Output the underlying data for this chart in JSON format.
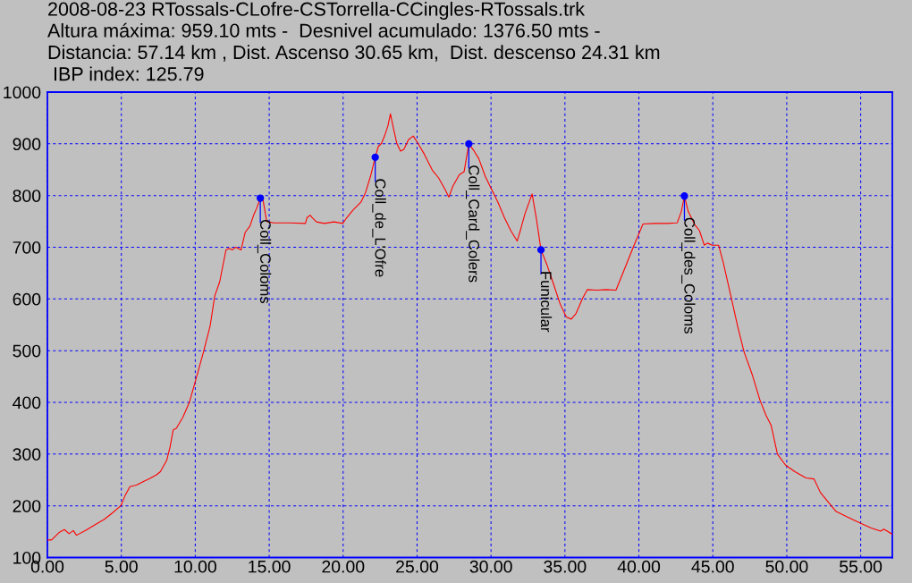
{
  "chart_data": {
    "type": "line",
    "title": "2008-08-23 RTossals-CLofre-CSTorrella-CCingles-RTossals.trk",
    "subtitle": "Altura máxima: 959.10 mts -  Desnivel acumulado: 1376.50 mts -\nDistancia: 57.14 km , Dist. Ascenso 30.65 km,  Dist. descenso 24.31 km\n IBP index: 125.79",
    "x": [
      0,
      0.28,
      0.82,
      1.15,
      1.47,
      1.75,
      1.97,
      2.55,
      3.31,
      3.85,
      4.39,
      4.96,
      5.26,
      5.58,
      6.02,
      6.56,
      6.88,
      7.38,
      7.64,
      8.07,
      8.29,
      8.51,
      8.72,
      9.16,
      9.59,
      10.02,
      10.56,
      11.0,
      11.32,
      11.65,
      12.08,
      12.29,
      12.51,
      12.73,
      13.1,
      13.38,
      13.7,
      13.96,
      14.15,
      14.4,
      14.55,
      14.83,
      15.3,
      16.37,
      17.45,
      17.55,
      17.77,
      17.92,
      18.2,
      18.73,
      19.38,
      19.98,
      20.24,
      20.67,
      21.2,
      21.52,
      21.85,
      22.17,
      22.38,
      22.6,
      22.81,
      23.03,
      23.2,
      23.41,
      23.63,
      23.88,
      24.1,
      24.42,
      24.74,
      25.06,
      25.49,
      26.03,
      26.46,
      26.89,
      27.15,
      27.42,
      27.85,
      28.18,
      28.5,
      28.86,
      29.18,
      29.61,
      30.04,
      30.47,
      30.91,
      31.34,
      31.77,
      31.98,
      32.31,
      32.78,
      33.06,
      33.38,
      33.81,
      34.25,
      34.68,
      35.09,
      35.43,
      35.75,
      36.19,
      36.51,
      37.16,
      37.8,
      38.45,
      38.99,
      39.63,
      40.28,
      41.03,
      41.9,
      42.59,
      42.87,
      43.08,
      43.34,
      43.77,
      44.1,
      44.42,
      44.63,
      44.96,
      45.39,
      45.71,
      46.25,
      46.68,
      47.11,
      47.65,
      48.18,
      48.61,
      48.94,
      49.37,
      49.91,
      50.55,
      51.3,
      51.84,
      52.27,
      52.7,
      53.34,
      54.2,
      55.0,
      55.71,
      56.35,
      56.57,
      57.14
    ],
    "values": [
      134,
      134,
      149,
      154,
      146,
      152,
      143,
      152,
      165,
      174,
      186,
      200,
      220,
      237,
      240,
      248,
      252,
      260,
      266,
      288,
      313,
      347,
      350,
      371,
      399,
      442,
      498,
      547,
      606,
      633,
      695,
      698,
      695,
      700,
      695,
      729,
      741,
      763,
      775,
      795,
      797,
      750,
      747,
      747,
      746,
      757,
      762,
      757,
      749,
      746,
      749,
      746,
      757,
      772,
      787,
      806,
      837,
      874,
      895,
      901,
      916,
      935,
      958,
      929,
      901,
      886,
      889,
      908,
      915,
      901,
      880,
      849,
      834,
      812,
      797,
      818,
      840,
      846,
      900,
      886,
      871,
      837,
      812,
      787,
      757,
      732,
      712,
      732,
      766,
      803,
      757,
      695,
      664,
      627,
      590,
      565,
      561,
      572,
      601,
      618,
      617,
      618,
      617,
      655,
      701,
      745,
      746,
      746,
      747,
      769,
      799,
      769,
      744,
      732,
      704,
      708,
      704,
      704,
      670,
      602,
      547,
      498,
      455,
      405,
      374,
      356,
      300,
      279,
      266,
      254,
      252,
      226,
      211,
      189,
      177,
      166,
      157,
      151,
      155,
      145
    ],
    "color": "#ff0000",
    "xlim": [
      0,
      57.14
    ],
    "xticks": [
      {
        "value": 0,
        "label": "0.00"
      },
      {
        "value": 5,
        "label": "5.00"
      },
      {
        "value": 10,
        "label": "10.00"
      },
      {
        "value": 15,
        "label": "15.00"
      },
      {
        "value": 20,
        "label": "20.00"
      },
      {
        "value": 25,
        "label": "25.00"
      },
      {
        "value": 30,
        "label": "30.00"
      },
      {
        "value": 35,
        "label": "35.00"
      },
      {
        "value": 40,
        "label": "40.00"
      },
      {
        "value": 45,
        "label": "45.00"
      },
      {
        "value": 50,
        "label": "50.00"
      },
      {
        "value": 55,
        "label": "55.00"
      }
    ],
    "ylim": [
      100,
      1000
    ],
    "yticks": [
      100,
      200,
      300,
      400,
      500,
      600,
      700,
      800,
      900,
      1000
    ],
    "grid": true,
    "annotations": [
      {
        "text": "Coll_Coloms",
        "x": 14.4,
        "y": 795
      },
      {
        "text": "Coll_de_L'Ofre",
        "x": 22.17,
        "y": 874
      },
      {
        "text": "Coll_Card_Colers",
        "x": 28.5,
        "y": 900
      },
      {
        "text": "Funicular",
        "x": 33.38,
        "y": 695
      },
      {
        "text": "Coll_des_Coloms",
        "x": 43.08,
        "y": 799
      }
    ]
  }
}
